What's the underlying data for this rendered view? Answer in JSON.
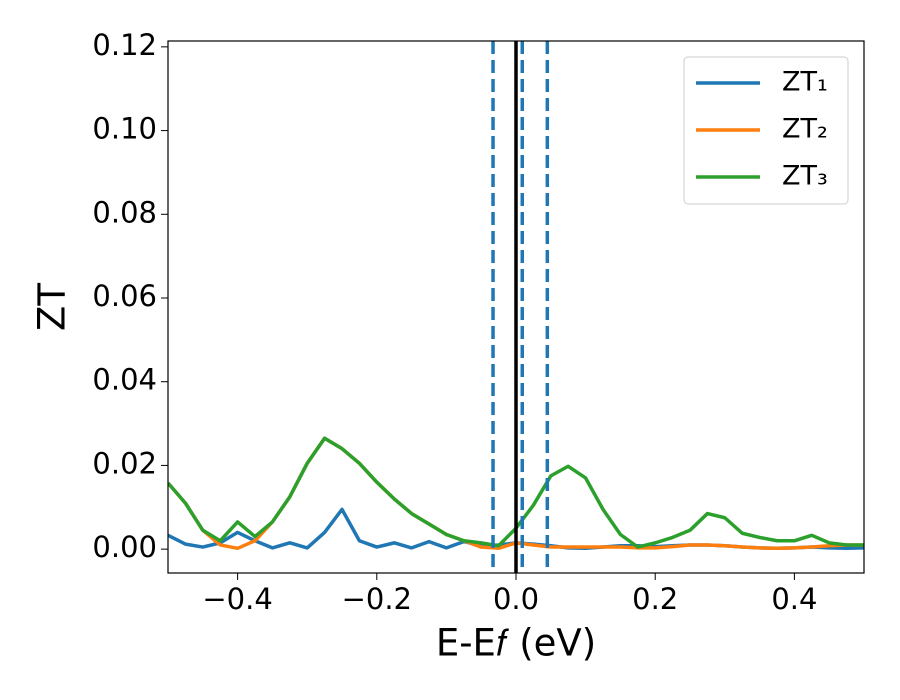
{
  "chart_data": {
    "type": "line",
    "xlabel": "E-E𝑓 (eV)",
    "ylabel": "ZT",
    "x": [
      -0.5,
      -0.475,
      -0.45,
      -0.425,
      -0.4,
      -0.375,
      -0.35,
      -0.325,
      -0.3,
      -0.275,
      -0.25,
      -0.225,
      -0.2,
      -0.175,
      -0.15,
      -0.125,
      -0.1,
      -0.075,
      -0.05,
      -0.025,
      0,
      0.025,
      0.05,
      0.075,
      0.1,
      0.125,
      0.15,
      0.175,
      0.2,
      0.225,
      0.25,
      0.275,
      0.3,
      0.325,
      0.35,
      0.375,
      0.4,
      0.425,
      0.45,
      0.475,
      0.5
    ],
    "series": [
      {
        "name": "ZT₁",
        "color": "#1f77b4",
        "values": [
          0.0033,
          0.0012,
          0.0005,
          0.0015,
          0.004,
          0.002,
          0.0003,
          0.0015,
          0.0003,
          0.004,
          0.0095,
          0.002,
          0.0005,
          0.0015,
          0.0003,
          0.0018,
          0.0003,
          0.0018,
          0.0008,
          0.001,
          0.0015,
          0.0012,
          0.0008,
          0.0003,
          0.0002,
          0.0005,
          0.0008,
          0.0008,
          0.0006,
          0.0008,
          0.001,
          0.001,
          0.0008,
          0.0005,
          0.0003,
          0.0002,
          0.0003,
          0.0005,
          0.0003,
          0.0002,
          0.0003
        ]
      },
      {
        "name": "ZT₂",
        "color": "#ff7f0e",
        "values": [
          0.0158,
          0.011,
          0.0045,
          0.001,
          0.0002,
          0.002,
          0.0065,
          0.0125,
          0.0205,
          0.0265,
          0.024,
          0.0205,
          0.016,
          0.012,
          0.0085,
          0.006,
          0.0035,
          0.002,
          0.0005,
          0.0002,
          0.0015,
          0.001,
          0.0005,
          0.0005,
          0.0005,
          0.0005,
          0.0005,
          0.0003,
          0.0003,
          0.0006,
          0.001,
          0.001,
          0.0008,
          0.0005,
          0.0003,
          0.0002,
          0.0003,
          0.0005,
          0.0008,
          0.001,
          0.001
        ]
      },
      {
        "name": "ZT₃",
        "color": "#2ca02c",
        "values": [
          0.0158,
          0.011,
          0.0045,
          0.002,
          0.0065,
          0.003,
          0.0065,
          0.0125,
          0.0205,
          0.0265,
          0.024,
          0.0205,
          0.016,
          0.012,
          0.0085,
          0.006,
          0.0035,
          0.002,
          0.0015,
          0.0008,
          0.005,
          0.0105,
          0.0175,
          0.0198,
          0.017,
          0.0095,
          0.0035,
          0.0005,
          0.0015,
          0.0028,
          0.0045,
          0.0085,
          0.0075,
          0.0038,
          0.0028,
          0.002,
          0.002,
          0.0033,
          0.0015,
          0.001,
          0.001
        ]
      }
    ],
    "vlines": [
      {
        "x": -0.033,
        "color": "#1f77b4",
        "dashed": true
      },
      {
        "x": 0.009,
        "color": "#1f77b4",
        "dashed": true
      },
      {
        "x": 0.045,
        "color": "#1f77b4",
        "dashed": true
      },
      {
        "x": 0,
        "color": "#000000",
        "dashed": false
      }
    ],
    "xlim": [
      -0.5,
      0.5
    ],
    "xticks": [
      {
        "value": -0.4,
        "label": "−0.4"
      },
      {
        "value": -0.2,
        "label": "−0.2"
      },
      {
        "value": 0,
        "label": "0.0"
      },
      {
        "value": 0.2,
        "label": "0.2"
      },
      {
        "value": 0.4,
        "label": "0.4"
      }
    ],
    "ylim": [
      -0.0057,
      0.1214
    ],
    "yticks": [
      {
        "value": 0,
        "label": "0.00"
      },
      {
        "value": 0.02,
        "label": "0.02"
      },
      {
        "value": 0.04,
        "label": "0.04"
      },
      {
        "value": 0.06,
        "label": "0.06"
      },
      {
        "value": 0.08,
        "label": "0.08"
      },
      {
        "value": 0.1,
        "label": "0.10"
      },
      {
        "value": 0.12,
        "label": "0.12"
      }
    ],
    "legend": "upper right",
    "grid": false
  }
}
